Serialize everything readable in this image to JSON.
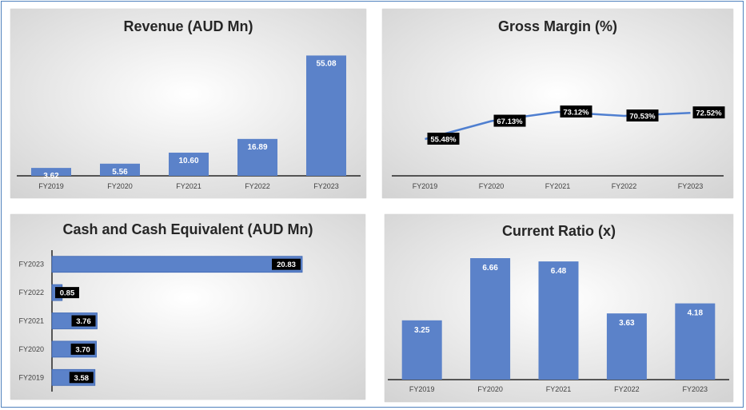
{
  "chart_data": [
    {
      "type": "bar",
      "title": "Revenue (AUD Mn)",
      "categories": [
        "FY2019",
        "FY2020",
        "FY2021",
        "FY2022",
        "FY2023"
      ],
      "values": [
        3.62,
        5.56,
        10.6,
        16.89,
        55.08
      ],
      "labels": [
        "3.62",
        "5.56",
        "10.60",
        "16.89",
        "55.08"
      ],
      "ylim": [
        0,
        60
      ],
      "grid": false,
      "bar_color": "#5b82c9"
    },
    {
      "type": "line",
      "title": "Gross Margin (%)",
      "categories": [
        "FY2019",
        "FY2020",
        "FY2021",
        "FY2022",
        "FY2023"
      ],
      "values": [
        55.48,
        67.13,
        73.12,
        70.53,
        72.52
      ],
      "labels": [
        "55.48%",
        "67.13%",
        "73.12%",
        "70.53%",
        "72.52%"
      ],
      "ylim": [
        0,
        80
      ],
      "grid": false,
      "line_color": "#4f7fd0",
      "label_bg": "#000000"
    },
    {
      "type": "bar",
      "orientation": "horizontal",
      "title": "Cash and Cash Equivalent (AUD Mn)",
      "categories": [
        "FY2023",
        "FY2022",
        "FY2021",
        "FY2020",
        "FY2019"
      ],
      "values": [
        20.83,
        0.85,
        3.76,
        3.7,
        3.58
      ],
      "labels": [
        "20.83",
        "0.85",
        "3.76",
        "3.70",
        "3.58"
      ],
      "xlim": [
        0,
        25
      ],
      "grid": false,
      "bar_color": "#5b82c9",
      "label_bg": "#000000"
    },
    {
      "type": "bar",
      "title": "Current Ratio (x)",
      "categories": [
        "FY2019",
        "FY2020",
        "FY2021",
        "FY2022",
        "FY2023"
      ],
      "values": [
        3.25,
        6.66,
        6.48,
        3.63,
        4.18
      ],
      "labels": [
        "3.25",
        "6.66",
        "6.48",
        "3.63",
        "4.18"
      ],
      "ylim": [
        0,
        7
      ],
      "grid": false,
      "bar_color": "#5b82c9"
    }
  ]
}
